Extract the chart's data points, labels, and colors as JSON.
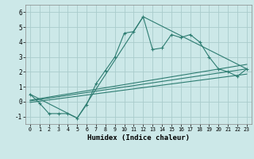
{
  "xlabel": "Humidex (Indice chaleur)",
  "bg_color": "#cce8e8",
  "grid_color": "#aacccc",
  "line_color": "#2e7d72",
  "xlim": [
    -0.5,
    23.5
  ],
  "ylim": [
    -1.5,
    6.5
  ],
  "yticks": [
    -1,
    0,
    1,
    2,
    3,
    4,
    5,
    6
  ],
  "xticks": [
    0,
    1,
    2,
    3,
    4,
    5,
    6,
    7,
    8,
    9,
    10,
    11,
    12,
    13,
    14,
    15,
    16,
    17,
    18,
    19,
    20,
    21,
    22,
    23
  ],
  "main_line_x": [
    0,
    1,
    2,
    3,
    4,
    5,
    6,
    7,
    8,
    9,
    10,
    11,
    12,
    13,
    14,
    15,
    16,
    17,
    18,
    19,
    20,
    21,
    22,
    23
  ],
  "main_line_y": [
    0.5,
    -0.1,
    -0.8,
    -0.8,
    -0.8,
    -1.1,
    -0.2,
    1.2,
    2.1,
    3.0,
    4.6,
    4.7,
    5.7,
    3.5,
    3.6,
    4.5,
    4.3,
    4.5,
    4.0,
    3.0,
    2.2,
    2.0,
    1.7,
    2.2
  ],
  "line2_x": [
    0,
    5,
    12,
    23
  ],
  "line2_y": [
    0.5,
    -1.1,
    5.7,
    2.2
  ],
  "line3_x": [
    0,
    23
  ],
  "line3_y": [
    0.05,
    2.2
  ],
  "line4_x": [
    0,
    23
  ],
  "line4_y": [
    -0.05,
    1.85
  ],
  "line5_x": [
    0,
    23
  ],
  "line5_y": [
    0.1,
    2.5
  ]
}
